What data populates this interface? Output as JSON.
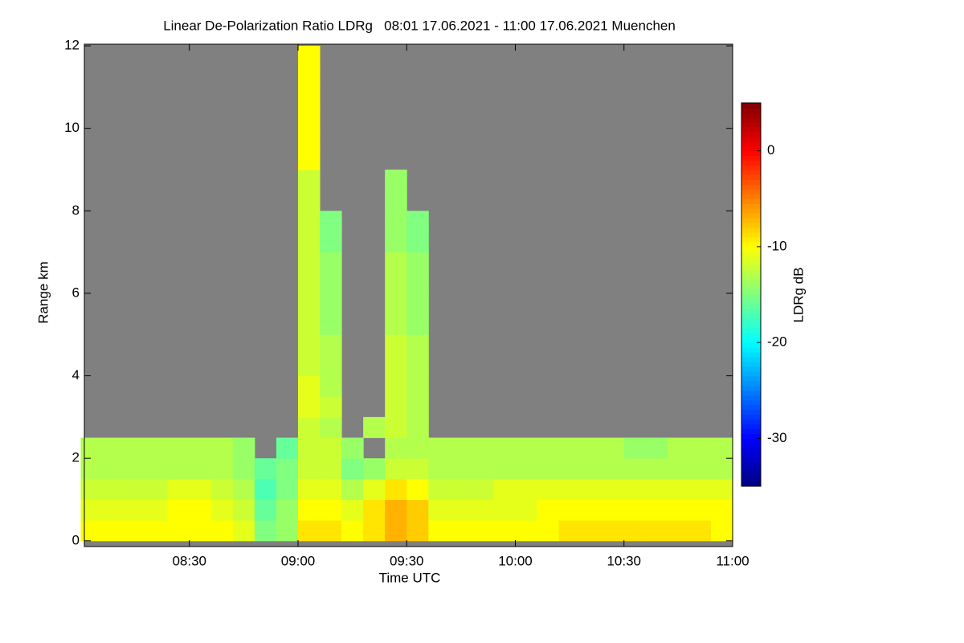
{
  "chart_data": {
    "type": "heatmap",
    "title": "Linear De-Polarization Ratio LDRg   08:01 17.06.2021 - 11:00 17.06.2021 Muenchen",
    "x_label": "Time UTC",
    "y_label": "Range km",
    "colorbar_label": "LDRg dB",
    "xlim": [
      8.0167,
      11.0
    ],
    "xticks": [
      {
        "value": 8.5,
        "label": "08:30"
      },
      {
        "value": 9.0,
        "label": "09:00"
      },
      {
        "value": 9.5,
        "label": "09:30"
      },
      {
        "value": 10.0,
        "label": "10:00"
      },
      {
        "value": 10.5,
        "label": "10:30"
      },
      {
        "value": 11.0,
        "label": "11:00"
      }
    ],
    "ylim": [
      -0.14,
      12.04
    ],
    "yticks": [
      0,
      2,
      4,
      6,
      8,
      10,
      12
    ],
    "zlim": [
      -35,
      5
    ],
    "zticks": [
      -30,
      -20,
      -10,
      0
    ],
    "colormap": "jet",
    "nodata_color": "#808080",
    "x": [
      8.05,
      8.15,
      8.25,
      8.35,
      8.45,
      8.55,
      8.65,
      8.75,
      8.85,
      8.95,
      9.05,
      9.15,
      9.25,
      9.35,
      9.45,
      9.55,
      9.65,
      9.75,
      9.85,
      9.95,
      10.05,
      10.15,
      10.25,
      10.35,
      10.45,
      10.55,
      10.65,
      10.75,
      10.85,
      10.95
    ],
    "y": [
      0.25,
      0.75,
      1.25,
      1.75,
      2.25,
      2.75,
      3.25,
      3.75,
      4.25,
      4.75,
      5.25,
      5.75,
      6.25,
      6.75,
      7.25,
      7.75,
      8.25,
      8.75,
      9.25,
      9.75,
      10.25,
      10.75,
      11.25,
      11.75
    ],
    "z": [
      [
        -10,
        -10,
        -10,
        -10,
        -10,
        -10,
        -10,
        -11,
        -15,
        -14,
        -9,
        -9,
        -10,
        -9,
        -7,
        -8,
        -10,
        -10,
        -10,
        -10,
        -10,
        -10,
        -9,
        -9,
        -9,
        -9,
        -9,
        -9,
        -9,
        -10
      ],
      [
        -11,
        -11,
        -11,
        -11,
        -10,
        -10,
        -11,
        -12,
        -16,
        -14,
        -10,
        -10,
        -11,
        -9,
        -7,
        -8,
        -11,
        -11,
        -11,
        -11,
        -11,
        -10,
        -10,
        -10,
        -10,
        -10,
        -10,
        -10,
        -10,
        -10
      ],
      [
        -12,
        -12,
        -12,
        -12,
        -11,
        -11,
        -12,
        -13,
        -17,
        -15,
        -11,
        -11,
        -13,
        -11,
        -9,
        -10,
        -12,
        -12,
        -12,
        -11,
        -11,
        -11,
        -11,
        -11,
        -11,
        -11,
        -11,
        -11,
        -11,
        -11
      ],
      [
        -13,
        -13,
        -13,
        -13,
        -13,
        -13,
        -13,
        -14,
        -16,
        -15,
        -12,
        -12,
        -15,
        -14,
        -12,
        -12,
        -13,
        -13,
        -13,
        -13,
        -13,
        -13,
        -13,
        -13,
        -13,
        -13,
        -13,
        -13,
        -13,
        -13
      ],
      [
        -13,
        -13,
        -13,
        -13,
        -13,
        -13,
        -13,
        -14,
        null,
        -16,
        -12,
        -12,
        -14,
        null,
        -13,
        -13,
        -13,
        -13,
        -13,
        -13,
        -13,
        -13,
        -13,
        -13,
        -13,
        -14,
        -14,
        -13,
        -13,
        -13
      ],
      [
        null,
        null,
        null,
        null,
        null,
        null,
        null,
        null,
        null,
        null,
        -12,
        -13,
        null,
        -13,
        -12,
        -13,
        null,
        null,
        null,
        null,
        null,
        null,
        null,
        null,
        null,
        null,
        null,
        null,
        null,
        null
      ],
      [
        null,
        null,
        null,
        null,
        null,
        null,
        null,
        null,
        null,
        null,
        -11,
        -12,
        null,
        null,
        -12,
        -13,
        null,
        null,
        null,
        null,
        null,
        null,
        null,
        null,
        null,
        null,
        null,
        null,
        null,
        null
      ],
      [
        null,
        null,
        null,
        null,
        null,
        null,
        null,
        null,
        null,
        null,
        -11,
        -13,
        null,
        null,
        -12,
        -13,
        null,
        null,
        null,
        null,
        null,
        null,
        null,
        null,
        null,
        null,
        null,
        null,
        null,
        null
      ],
      [
        null,
        null,
        null,
        null,
        null,
        null,
        null,
        null,
        null,
        null,
        -12,
        -13,
        null,
        null,
        -12,
        -13,
        null,
        null,
        null,
        null,
        null,
        null,
        null,
        null,
        null,
        null,
        null,
        null,
        null,
        null
      ],
      [
        null,
        null,
        null,
        null,
        null,
        null,
        null,
        null,
        null,
        null,
        -12,
        -13,
        null,
        null,
        -12,
        -13,
        null,
        null,
        null,
        null,
        null,
        null,
        null,
        null,
        null,
        null,
        null,
        null,
        null,
        null
      ],
      [
        null,
        null,
        null,
        null,
        null,
        null,
        null,
        null,
        null,
        null,
        -12,
        -14,
        null,
        null,
        -13,
        -14,
        null,
        null,
        null,
        null,
        null,
        null,
        null,
        null,
        null,
        null,
        null,
        null,
        null,
        null
      ],
      [
        null,
        null,
        null,
        null,
        null,
        null,
        null,
        null,
        null,
        null,
        -12,
        -14,
        null,
        null,
        -13,
        -14,
        null,
        null,
        null,
        null,
        null,
        null,
        null,
        null,
        null,
        null,
        null,
        null,
        null,
        null
      ],
      [
        null,
        null,
        null,
        null,
        null,
        null,
        null,
        null,
        null,
        null,
        -12,
        -14,
        null,
        null,
        -13,
        -14,
        null,
        null,
        null,
        null,
        null,
        null,
        null,
        null,
        null,
        null,
        null,
        null,
        null,
        null
      ],
      [
        null,
        null,
        null,
        null,
        null,
        null,
        null,
        null,
        null,
        null,
        -12,
        -14,
        null,
        null,
        -13,
        -14,
        null,
        null,
        null,
        null,
        null,
        null,
        null,
        null,
        null,
        null,
        null,
        null,
        null,
        null
      ],
      [
        null,
        null,
        null,
        null,
        null,
        null,
        null,
        null,
        null,
        null,
        -12,
        -15,
        null,
        null,
        -14,
        -15,
        null,
        null,
        null,
        null,
        null,
        null,
        null,
        null,
        null,
        null,
        null,
        null,
        null,
        null
      ],
      [
        null,
        null,
        null,
        null,
        null,
        null,
        null,
        null,
        null,
        null,
        -12,
        -15,
        null,
        null,
        -14,
        -15,
        null,
        null,
        null,
        null,
        null,
        null,
        null,
        null,
        null,
        null,
        null,
        null,
        null,
        null
      ],
      [
        null,
        null,
        null,
        null,
        null,
        null,
        null,
        null,
        null,
        null,
        -12,
        null,
        null,
        null,
        -14,
        null,
        null,
        null,
        null,
        null,
        null,
        null,
        null,
        null,
        null,
        null,
        null,
        null,
        null,
        null
      ],
      [
        null,
        null,
        null,
        null,
        null,
        null,
        null,
        null,
        null,
        null,
        -12,
        null,
        null,
        null,
        -14,
        null,
        null,
        null,
        null,
        null,
        null,
        null,
        null,
        null,
        null,
        null,
        null,
        null,
        null,
        null
      ],
      [
        null,
        null,
        null,
        null,
        null,
        null,
        null,
        null,
        null,
        null,
        -10,
        null,
        null,
        null,
        null,
        null,
        null,
        null,
        null,
        null,
        null,
        null,
        null,
        null,
        null,
        null,
        null,
        null,
        null,
        null
      ],
      [
        null,
        null,
        null,
        null,
        null,
        null,
        null,
        null,
        null,
        null,
        -10,
        null,
        null,
        null,
        null,
        null,
        null,
        null,
        null,
        null,
        null,
        null,
        null,
        null,
        null,
        null,
        null,
        null,
        null,
        null
      ],
      [
        null,
        null,
        null,
        null,
        null,
        null,
        null,
        null,
        null,
        null,
        -10,
        null,
        null,
        null,
        null,
        null,
        null,
        null,
        null,
        null,
        null,
        null,
        null,
        null,
        null,
        null,
        null,
        null,
        null,
        null
      ],
      [
        null,
        null,
        null,
        null,
        null,
        null,
        null,
        null,
        null,
        null,
        -10,
        null,
        null,
        null,
        null,
        null,
        null,
        null,
        null,
        null,
        null,
        null,
        null,
        null,
        null,
        null,
        null,
        null,
        null,
        null
      ],
      [
        null,
        null,
        null,
        null,
        null,
        null,
        null,
        null,
        null,
        null,
        -10,
        null,
        null,
        null,
        null,
        null,
        null,
        null,
        null,
        null,
        null,
        null,
        null,
        null,
        null,
        null,
        null,
        null,
        null,
        null
      ],
      [
        null,
        null,
        null,
        null,
        null,
        null,
        null,
        null,
        null,
        null,
        -10,
        null,
        null,
        null,
        null,
        null,
        null,
        null,
        null,
        null,
        null,
        null,
        null,
        null,
        null,
        null,
        null,
        null,
        null,
        null
      ]
    ]
  }
}
